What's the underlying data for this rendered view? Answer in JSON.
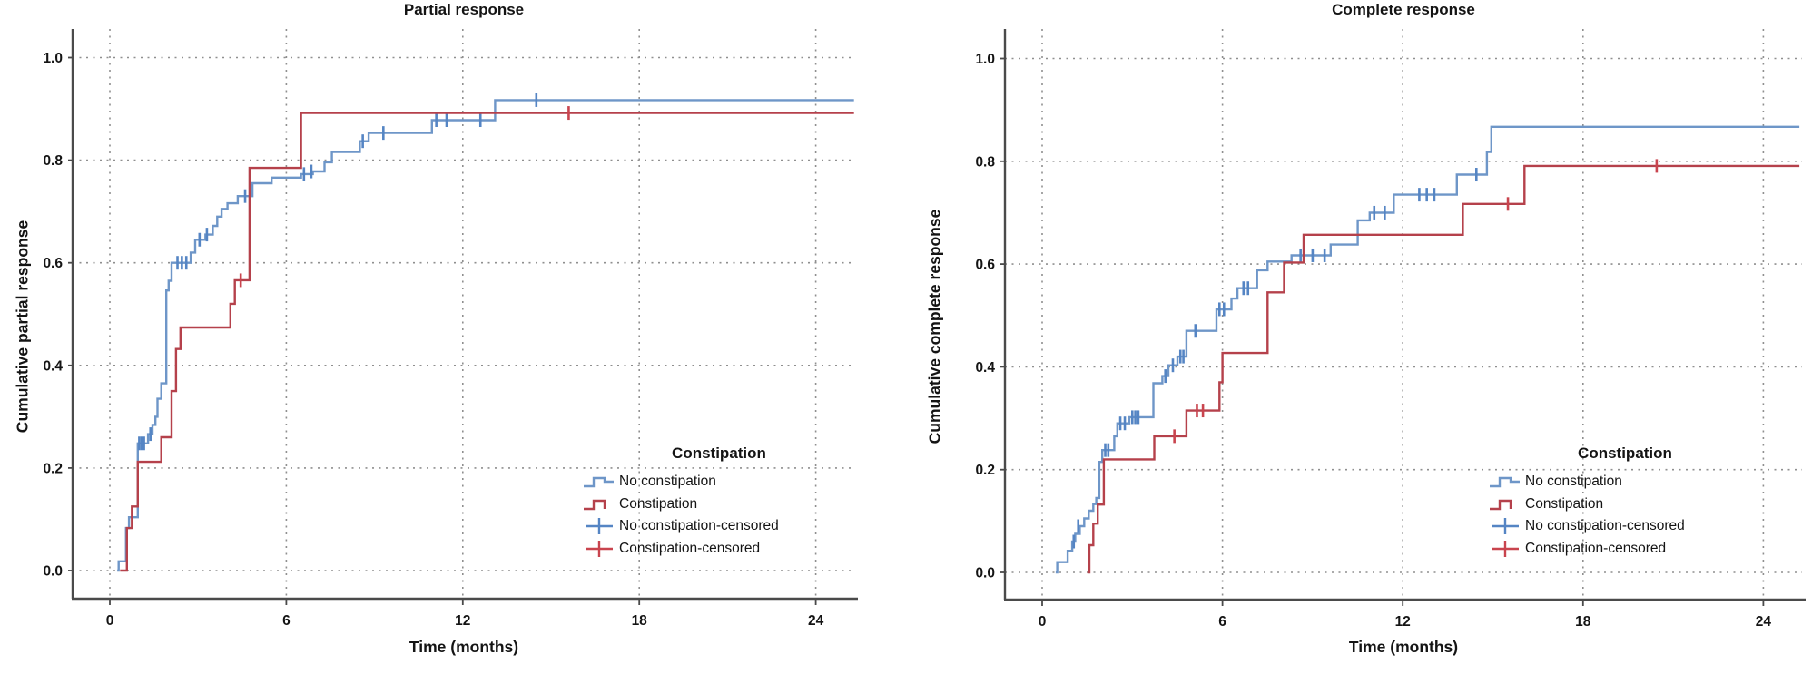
{
  "figure": {
    "background": "#ffffff",
    "text_color": "#141414",
    "grid_color": "#8f8f8f",
    "axis_color": "#4a4a4a"
  },
  "chart_data": [
    {
      "type": "line",
      "subtype": "kaplan-meier-step",
      "title": "Partial response",
      "xlabel": "Time (months)",
      "ylabel": "Cumulative partial response",
      "xticks": [
        "0",
        "6",
        "12",
        "18",
        "24"
      ],
      "yticks": [
        "0.0",
        "0.2",
        "0.4",
        "0.6",
        "0.8",
        "1.0"
      ],
      "xlim": [
        0,
        25.3
      ],
      "ylim": [
        0.0,
        1.0
      ],
      "grid": "dashed-both-axes",
      "legend": {
        "title": "Constipation",
        "position": "inside-lower-right",
        "entries": [
          {
            "label": "No constipation",
            "glyph": "step-line"
          },
          {
            "label": "Constipation",
            "glyph": "step-line"
          },
          {
            "label": "No constipation-censored",
            "glyph": "plus"
          },
          {
            "label": "Constipation-censored",
            "glyph": "plus"
          }
        ]
      },
      "series": [
        {
          "name": "No constipation",
          "color": "#6e96c8",
          "censor_color": "#5585c4",
          "steps": [
            [
              0.25,
              0
            ],
            [
              0.3,
              0.018
            ],
            [
              0.55,
              0.083
            ],
            [
              0.65,
              0.104
            ],
            [
              0.95,
              0.248
            ],
            [
              1.3,
              0.266
            ],
            [
              1.45,
              0.284
            ],
            [
              1.55,
              0.3
            ],
            [
              1.62,
              0.335
            ],
            [
              1.75,
              0.365
            ],
            [
              1.92,
              0.546
            ],
            [
              2.0,
              0.565
            ],
            [
              2.1,
              0.6
            ],
            [
              2.75,
              0.62
            ],
            [
              2.9,
              0.645
            ],
            [
              3.25,
              0.655
            ],
            [
              3.5,
              0.672
            ],
            [
              3.65,
              0.69
            ],
            [
              3.8,
              0.705
            ],
            [
              4.0,
              0.716
            ],
            [
              4.35,
              0.73
            ],
            [
              4.85,
              0.755
            ],
            [
              5.5,
              0.766
            ],
            [
              6.5,
              0.773
            ],
            [
              6.9,
              0.778
            ],
            [
              7.3,
              0.796
            ],
            [
              7.55,
              0.816
            ],
            [
              8.5,
              0.837
            ],
            [
              8.8,
              0.853
            ],
            [
              10.95,
              0.878
            ],
            [
              13.1,
              0.917
            ],
            [
              25.3,
              0.917
            ]
          ],
          "censored": [
            [
              1.0,
              0.248
            ],
            [
              1.08,
              0.248
            ],
            [
              1.16,
              0.248
            ],
            [
              1.38,
              0.266
            ],
            [
              2.3,
              0.6
            ],
            [
              2.45,
              0.6
            ],
            [
              2.6,
              0.6
            ],
            [
              3.05,
              0.645
            ],
            [
              3.3,
              0.655
            ],
            [
              4.6,
              0.73
            ],
            [
              6.6,
              0.773
            ],
            [
              6.85,
              0.778
            ],
            [
              8.6,
              0.837
            ],
            [
              9.3,
              0.853
            ],
            [
              11.1,
              0.878
            ],
            [
              11.45,
              0.878
            ],
            [
              12.6,
              0.878
            ],
            [
              14.5,
              0.917
            ]
          ]
        },
        {
          "name": "Constipation",
          "color": "#b5414b",
          "censor_color": "#c9444e",
          "steps": [
            [
              0.35,
              0
            ],
            [
              0.58,
              0.083
            ],
            [
              0.75,
              0.125
            ],
            [
              0.95,
              0.212
            ],
            [
              1.75,
              0.26
            ],
            [
              2.1,
              0.35
            ],
            [
              2.25,
              0.432
            ],
            [
              2.4,
              0.474
            ],
            [
              4.1,
              0.52
            ],
            [
              4.25,
              0.566
            ],
            [
              4.75,
              0.785
            ],
            [
              6.5,
              0.892
            ],
            [
              25.3,
              0.892
            ]
          ],
          "censored": [
            [
              4.45,
              0.566
            ],
            [
              15.6,
              0.892
            ]
          ]
        }
      ]
    },
    {
      "type": "line",
      "subtype": "kaplan-meier-step",
      "title": "Complete response",
      "xlabel": "Time (months)",
      "ylabel": "Cumulative complete response",
      "xticks": [
        "0",
        "6",
        "12",
        "18",
        "24"
      ],
      "yticks": [
        "0.0",
        "0.2",
        "0.4",
        "0.6",
        "0.8",
        "1.0"
      ],
      "xlim": [
        0,
        25.2
      ],
      "ylim": [
        0.0,
        1.0
      ],
      "grid": "dashed-both-axes",
      "legend": {
        "title": "Constipation",
        "position": "inside-lower-right",
        "entries": [
          {
            "label": "No constipation",
            "glyph": "step-line"
          },
          {
            "label": "Constipation",
            "glyph": "step-line"
          },
          {
            "label": "No constipation-censored",
            "glyph": "plus"
          },
          {
            "label": "Constipation-censored",
            "glyph": "plus"
          }
        ]
      },
      "series": [
        {
          "name": "No constipation",
          "color": "#6e96c8",
          "censor_color": "#5585c4",
          "steps": [
            [
              0.45,
              0
            ],
            [
              0.5,
              0.02
            ],
            [
              0.85,
              0.042
            ],
            [
              1.0,
              0.06
            ],
            [
              1.1,
              0.075
            ],
            [
              1.25,
              0.09
            ],
            [
              1.4,
              0.105
            ],
            [
              1.55,
              0.12
            ],
            [
              1.7,
              0.133
            ],
            [
              1.8,
              0.145
            ],
            [
              1.9,
              0.215
            ],
            [
              2.0,
              0.238
            ],
            [
              2.4,
              0.265
            ],
            [
              2.5,
              0.29
            ],
            [
              2.9,
              0.302
            ],
            [
              3.7,
              0.368
            ],
            [
              4.0,
              0.382
            ],
            [
              4.2,
              0.403
            ],
            [
              4.5,
              0.42
            ],
            [
              4.8,
              0.47
            ],
            [
              5.8,
              0.512
            ],
            [
              6.3,
              0.533
            ],
            [
              6.5,
              0.553
            ],
            [
              7.15,
              0.588
            ],
            [
              7.5,
              0.605
            ],
            [
              8.3,
              0.617
            ],
            [
              9.6,
              0.638
            ],
            [
              10.5,
              0.685
            ],
            [
              10.9,
              0.7
            ],
            [
              11.7,
              0.735
            ],
            [
              13.8,
              0.774
            ],
            [
              14.8,
              0.818
            ],
            [
              14.95,
              0.867
            ],
            [
              25.2,
              0.867
            ]
          ],
          "censored": [
            [
              1.05,
              0.06
            ],
            [
              1.2,
              0.09
            ],
            [
              2.1,
              0.238
            ],
            [
              2.2,
              0.238
            ],
            [
              2.6,
              0.29
            ],
            [
              2.75,
              0.29
            ],
            [
              3.0,
              0.302
            ],
            [
              3.1,
              0.302
            ],
            [
              3.2,
              0.302
            ],
            [
              4.1,
              0.382
            ],
            [
              4.35,
              0.403
            ],
            [
              4.6,
              0.42
            ],
            [
              4.7,
              0.42
            ],
            [
              5.1,
              0.47
            ],
            [
              5.9,
              0.512
            ],
            [
              6.05,
              0.512
            ],
            [
              6.7,
              0.553
            ],
            [
              6.85,
              0.553
            ],
            [
              8.6,
              0.617
            ],
            [
              9.0,
              0.617
            ],
            [
              9.4,
              0.617
            ],
            [
              11.05,
              0.7
            ],
            [
              11.4,
              0.7
            ],
            [
              12.55,
              0.735
            ],
            [
              12.8,
              0.735
            ],
            [
              13.05,
              0.735
            ],
            [
              14.45,
              0.774
            ]
          ]
        },
        {
          "name": "Constipation",
          "color": "#b5414b",
          "censor_color": "#c9444e",
          "steps": [
            [
              1.5,
              0
            ],
            [
              1.57,
              0.053
            ],
            [
              1.7,
              0.095
            ],
            [
              1.85,
              0.132
            ],
            [
              2.05,
              0.22
            ],
            [
              3.73,
              0.265
            ],
            [
              4.8,
              0.315
            ],
            [
              5.9,
              0.37
            ],
            [
              6.0,
              0.427
            ],
            [
              7.5,
              0.545
            ],
            [
              8.05,
              0.603
            ],
            [
              8.7,
              0.657
            ],
            [
              14.0,
              0.717
            ],
            [
              16.05,
              0.791
            ],
            [
              25.2,
              0.791
            ]
          ],
          "censored": [
            [
              4.4,
              0.265
            ],
            [
              5.15,
              0.315
            ],
            [
              5.35,
              0.315
            ],
            [
              15.5,
              0.717
            ],
            [
              20.45,
              0.791
            ]
          ]
        }
      ]
    }
  ]
}
